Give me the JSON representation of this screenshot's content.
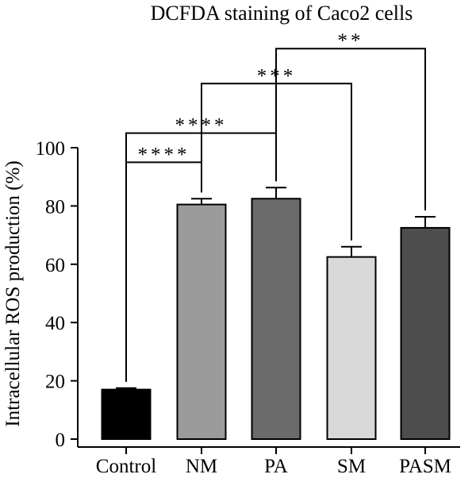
{
  "chart_data": {
    "type": "bar",
    "title": "DCFDA staining of Caco2 cells",
    "xlabel": "",
    "ylabel": "Intracellular ROS production (%)",
    "ylim": [
      0,
      100
    ],
    "yticks": [
      0,
      20,
      40,
      60,
      80,
      100
    ],
    "categories": [
      "Control",
      "NM",
      "PA",
      "SM",
      "PASM"
    ],
    "values": [
      17,
      80.5,
      82.5,
      62.5,
      72.5
    ],
    "errors": [
      0.5,
      2,
      3.8,
      3.5,
      3.8
    ],
    "bar_colors": [
      "#000000",
      "#9b9b9b",
      "#6b6b6b",
      "#d9d9d9",
      "#4d4d4d"
    ],
    "grid": false,
    "significance": [
      {
        "from": "Control",
        "to": "NM",
        "label": "****",
        "level": 95
      },
      {
        "from": "Control",
        "to": "PA",
        "label": "****",
        "level": 105
      },
      {
        "from": "NM",
        "to": "SM",
        "label": "***",
        "level": 122
      },
      {
        "from": "PA",
        "to": "PASM",
        "label": "**",
        "level": 134
      }
    ]
  }
}
